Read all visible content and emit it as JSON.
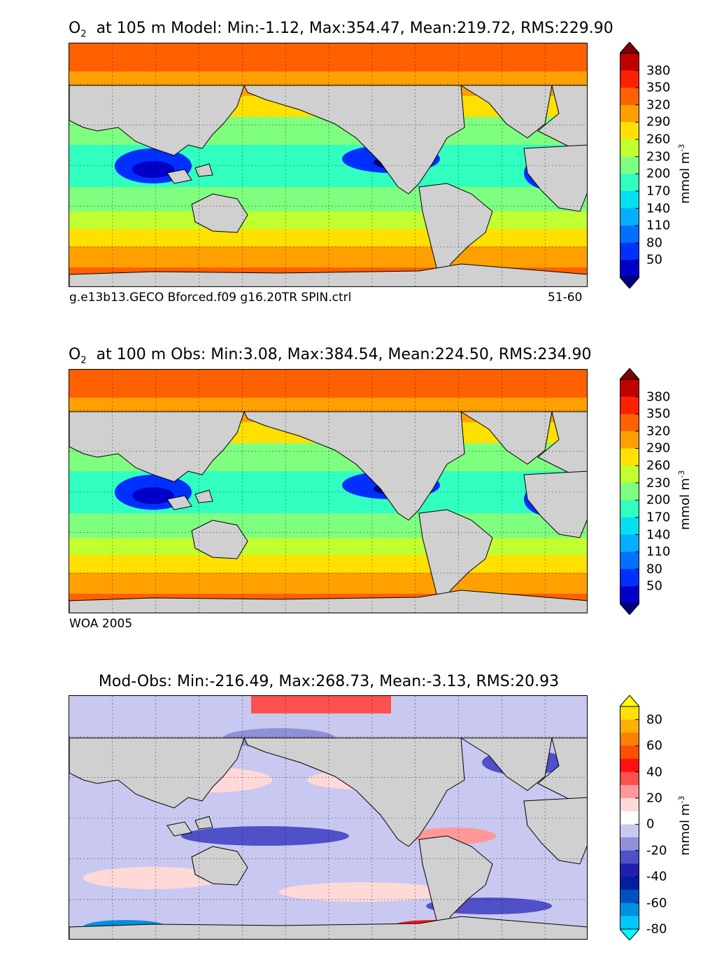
{
  "panels": [
    {
      "id": "model",
      "title_species": "O",
      "title_sub": "2",
      "title_rest": "at 105 m Model: Min:-1.12, Max:354.47, Mean:219.72, RMS:229.90",
      "caption_left": "g.e13b13.GECO Bforced.f09 g16.20TR SPIN.ctrl",
      "caption_right": "51-60",
      "colorbar_ticks": [
        "380",
        "350",
        "320",
        "290",
        "260",
        "230",
        "200",
        "170",
        "140",
        "110",
        "80",
        "50"
      ],
      "colorbar_unit": "mmol m",
      "colorbar_unit_exp": "-3"
    },
    {
      "id": "obs",
      "title_species": "O",
      "title_sub": "2",
      "title_rest": "at 100 m Obs: Min:3.08, Max:384.54, Mean:224.50, RMS:234.90",
      "caption_left": "WOA 2005",
      "caption_right": "",
      "colorbar_ticks": [
        "380",
        "350",
        "320",
        "290",
        "260",
        "230",
        "200",
        "170",
        "140",
        "110",
        "80",
        "50"
      ],
      "colorbar_unit": "mmol m",
      "colorbar_unit_exp": "-3"
    },
    {
      "id": "diff",
      "title_full": "Mod-Obs: Min:-216.49, Max:268.73, Mean:-3.13, RMS:20.93",
      "colorbar_ticks": [
        "80",
        "60",
        "40",
        "20",
        "0",
        "-20",
        "-40",
        "-60",
        "-80"
      ],
      "colorbar_unit": "mmol m",
      "colorbar_unit_exp": "-3"
    }
  ],
  "chart_data": [
    {
      "type": "heatmap",
      "title": "O2 at 105 m Model: Min:-1.12, Max:354.47, Mean:219.72, RMS:229.90",
      "variable": "O2",
      "depth_m": 105,
      "source": "Model",
      "stats": {
        "min": -1.12,
        "max": 354.47,
        "mean": 219.72,
        "rms": 229.9
      },
      "colorbar": {
        "label": "mmol m^-3",
        "levels": [
          20,
          50,
          80,
          110,
          140,
          170,
          200,
          230,
          260,
          290,
          320,
          350,
          380,
          410
        ],
        "extend": "both"
      },
      "color_scale": [
        "#00007f",
        "#0000c8",
        "#0030ff",
        "#0070ff",
        "#00b0ff",
        "#00e0f0",
        "#30ffc0",
        "#7fff7f",
        "#c0ff30",
        "#ffe000",
        "#ffa000",
        "#ff6000",
        "#ff2000",
        "#c00000",
        "#7f0000"
      ]
    },
    {
      "type": "heatmap",
      "title": "O2 at 100 m Obs: Min:3.08, Max:384.54, Mean:224.50, RMS:234.90",
      "variable": "O2",
      "depth_m": 100,
      "source": "WOA 2005",
      "stats": {
        "min": 3.08,
        "max": 384.54,
        "mean": 224.5,
        "rms": 234.9
      },
      "colorbar": {
        "label": "mmol m^-3",
        "levels": [
          20,
          50,
          80,
          110,
          140,
          170,
          200,
          230,
          260,
          290,
          320,
          350,
          380,
          410
        ],
        "extend": "both"
      }
    },
    {
      "type": "heatmap",
      "title": "Mod-Obs: Min:-216.49, Max:268.73, Mean:-3.13, RMS:20.93",
      "stats": {
        "min": -216.49,
        "max": 268.73,
        "mean": -3.13,
        "rms": 20.93
      },
      "colorbar": {
        "label": "mmol m^-3",
        "levels": [
          -90,
          -80,
          -70,
          -60,
          -50,
          -40,
          -30,
          -20,
          -10,
          0,
          10,
          20,
          30,
          40,
          50,
          60,
          70,
          80,
          90
        ],
        "extend": "both"
      },
      "color_scale": [
        "#00ffff",
        "#00c8ff",
        "#0090e0",
        "#0050c0",
        "#0020a0",
        "#2020b0",
        "#5050c8",
        "#9090d8",
        "#c8c8f0",
        "#ffffff",
        "#ffd8d8",
        "#ff9898",
        "#ff5050",
        "#ff1010",
        "#ff5000",
        "#ff8000",
        "#ffb000",
        "#ffe000",
        "#ffff00"
      ]
    }
  ]
}
